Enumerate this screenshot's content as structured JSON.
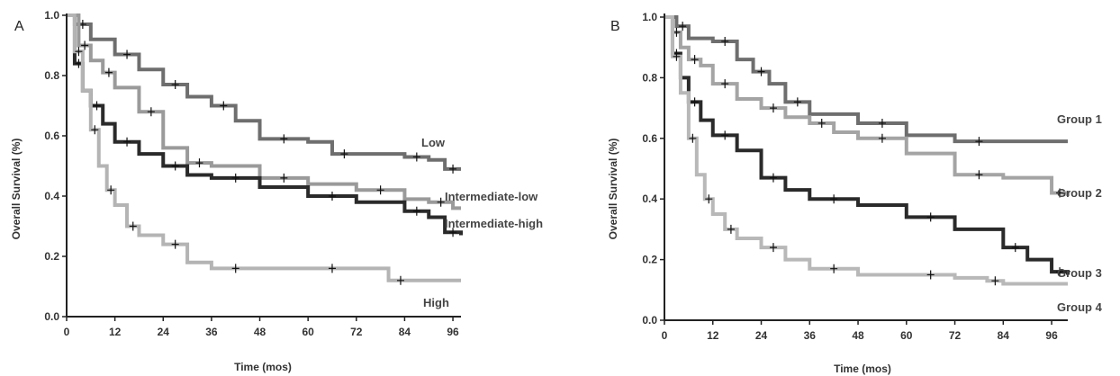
{
  "chart_data": [
    {
      "type": "line",
      "panel": "A",
      "xlabel": "Time (mos)",
      "ylabel": "Overall Survival (%)",
      "xlim": [
        0,
        98
      ],
      "ylim": [
        0,
        1.0
      ],
      "xticks": [
        "0",
        "12",
        "24",
        "36",
        "48",
        "60",
        "72",
        "84",
        "96"
      ],
      "yticks": [
        "0.0",
        "0.2",
        "0.4",
        "0.6",
        "0.8",
        "1.0"
      ],
      "grid": false,
      "series": [
        {
          "name": "Low",
          "color": "#6e6e6e",
          "x": [
            0,
            2,
            6,
            12,
            18,
            24,
            30,
            36,
            42,
            48,
            60,
            66,
            72,
            84,
            90,
            94,
            98
          ],
          "y": [
            1.0,
            0.97,
            0.92,
            0.87,
            0.82,
            0.77,
            0.73,
            0.7,
            0.65,
            0.59,
            0.58,
            0.54,
            0.54,
            0.53,
            0.52,
            0.49,
            0.49
          ]
        },
        {
          "name": "Intermediate-low",
          "color": "#9a9a9a",
          "x": [
            0,
            3,
            6,
            9,
            12,
            18,
            24,
            30,
            36,
            48,
            60,
            72,
            84,
            90,
            96,
            98
          ],
          "y": [
            1.0,
            0.9,
            0.85,
            0.81,
            0.76,
            0.68,
            0.56,
            0.51,
            0.5,
            0.46,
            0.44,
            0.42,
            0.39,
            0.38,
            0.36,
            0.36
          ]
        },
        {
          "name": "Intermediate-high",
          "color": "#2a2a2a",
          "x": [
            0,
            2,
            4,
            6,
            9,
            12,
            18,
            24,
            30,
            36,
            48,
            60,
            72,
            84,
            90,
            94,
            98
          ],
          "y": [
            1.0,
            0.84,
            0.75,
            0.7,
            0.64,
            0.58,
            0.54,
            0.5,
            0.47,
            0.46,
            0.43,
            0.4,
            0.38,
            0.35,
            0.33,
            0.28,
            0.27
          ]
        },
        {
          "name": "High",
          "color": "#b4b4b4",
          "x": [
            0,
            2,
            4,
            6,
            8,
            10,
            12,
            15,
            18,
            24,
            30,
            36,
            48,
            60,
            72,
            80,
            86,
            98
          ],
          "y": [
            1.0,
            0.88,
            0.75,
            0.62,
            0.5,
            0.42,
            0.37,
            0.3,
            0.27,
            0.24,
            0.18,
            0.16,
            0.16,
            0.16,
            0.16,
            0.12,
            0.12,
            0.12
          ]
        }
      ],
      "curve_labels": [
        "Low",
        "Intermediate-low",
        "Intermediate-high",
        "High"
      ]
    },
    {
      "type": "line",
      "panel": "B",
      "xlabel": "Time (mos)",
      "ylabel": "Overall Survival (%)",
      "xlim": [
        0,
        100
      ],
      "ylim": [
        0,
        1.0
      ],
      "xticks": [
        "0",
        "12",
        "24",
        "36",
        "48",
        "60",
        "72",
        "84",
        "96"
      ],
      "yticks": [
        "0.0",
        "0.2",
        "0.4",
        "0.6",
        "0.8",
        "1.0"
      ],
      "grid": false,
      "series": [
        {
          "name": "Group 1",
          "color": "#6e6e6e",
          "x": [
            0,
            3,
            6,
            12,
            18,
            22,
            26,
            30,
            36,
            48,
            60,
            72,
            84,
            100
          ],
          "y": [
            1.0,
            0.97,
            0.93,
            0.92,
            0.86,
            0.82,
            0.78,
            0.72,
            0.68,
            0.65,
            0.61,
            0.59,
            0.59,
            0.59
          ]
        },
        {
          "name": "Group 2",
          "color": "#a4a4a4",
          "x": [
            0,
            2,
            4,
            6,
            9,
            12,
            18,
            24,
            30,
            36,
            42,
            48,
            60,
            72,
            84,
            96,
            100
          ],
          "y": [
            1.0,
            0.95,
            0.9,
            0.86,
            0.84,
            0.78,
            0.73,
            0.7,
            0.67,
            0.65,
            0.62,
            0.6,
            0.55,
            0.48,
            0.47,
            0.42,
            0.41
          ]
        },
        {
          "name": "Group 3",
          "color": "#2a2a2a",
          "x": [
            0,
            2,
            4,
            6,
            9,
            12,
            18,
            24,
            30,
            36,
            48,
            60,
            72,
            84,
            90,
            96,
            100
          ],
          "y": [
            1.0,
            0.88,
            0.8,
            0.72,
            0.66,
            0.61,
            0.56,
            0.47,
            0.43,
            0.4,
            0.38,
            0.34,
            0.3,
            0.24,
            0.2,
            0.16,
            0.15
          ]
        },
        {
          "name": "Group 4",
          "color": "#b8b8b8",
          "x": [
            0,
            2,
            4,
            6,
            8,
            10,
            12,
            15,
            18,
            24,
            30,
            36,
            48,
            60,
            72,
            80,
            84,
            100
          ],
          "y": [
            1.0,
            0.87,
            0.75,
            0.6,
            0.48,
            0.4,
            0.35,
            0.3,
            0.27,
            0.24,
            0.2,
            0.17,
            0.15,
            0.15,
            0.14,
            0.13,
            0.12,
            0.12
          ]
        }
      ],
      "curve_labels": [
        "Group 1",
        "Group 2",
        "Group 3",
        "Group 4"
      ]
    }
  ]
}
